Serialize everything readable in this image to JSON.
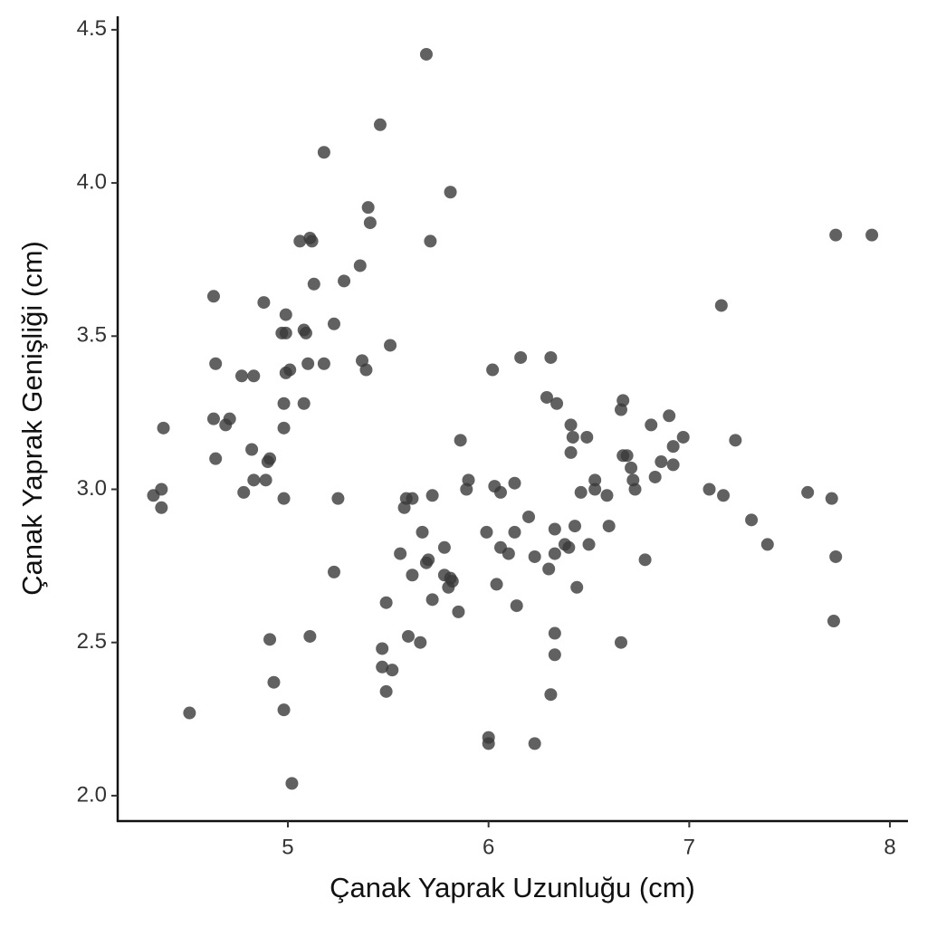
{
  "chart_data": {
    "type": "scatter",
    "x_label": "Çanak Yaprak Uzunluğu (cm)",
    "y_label": "Çanak Yaprak Genişliği (cm)",
    "color": "#3a3a3a",
    "xlim": [
      4.152,
      8.09
    ],
    "ylim": [
      1.917,
      4.544
    ],
    "xticks": [
      5,
      6,
      7,
      8
    ],
    "yticks": [
      {
        "value": 2,
        "label": "2.0"
      },
      2.5,
      {
        "value": 3,
        "label": "3.0"
      },
      3.5,
      {
        "value": 4,
        "label": "4.0"
      },
      4.5
    ],
    "x": [
      5.69,
      5.46,
      5.18,
      5.81,
      5.4,
      5.41,
      7.73,
      7.91,
      5.06,
      5.11,
      5.12,
      5.71,
      5.36,
      5.13,
      5.28,
      4.63,
      4.88,
      7.16,
      4.99,
      5.23,
      5.08,
      4.97,
      4.99,
      5.09,
      5.51,
      4.64,
      5.37,
      5.18,
      5.1,
      5.01,
      5.39,
      6.02,
      6.16,
      6.31,
      4.77,
      4.83,
      4.99,
      6.29,
      6.34,
      6.67,
      6.66,
      4.98,
      5.08,
      4.71,
      4.63,
      4.69,
      4.38,
      4.98,
      6.41,
      6.81,
      6.9,
      6.42,
      6.49,
      5.86,
      6.97,
      7.23,
      6.92,
      4.82,
      6.41,
      6.67,
      6.69,
      4.64,
      4.91,
      4.9,
      6.86,
      6.92,
      6.71,
      6.83,
      4.89,
      4.83,
      5.9,
      6.53,
      6.72,
      6.13,
      6.03,
      4.37,
      4.33,
      4.78,
      5.89,
      6.46,
      6.53,
      6.73,
      7.1,
      7.17,
      7.59,
      6.06,
      5.72,
      4.98,
      5.25,
      5.59,
      5.62,
      6.59,
      7.71,
      4.37,
      5.58,
      6.2,
      7.31,
      5.67,
      5.99,
      6.13,
      6.33,
      6.43,
      6.6,
      7.39,
      6.38,
      6.4,
      6.5,
      6.06,
      5.78,
      5.56,
      6.1,
      6.23,
      6.33,
      5.7,
      5.69,
      6.78,
      7.73,
      6.3,
      5.23,
      5.62,
      5.78,
      5.81,
      5.82,
      5.8,
      6.04,
      6.44,
      5.85,
      5.72,
      5.49,
      6.14,
      7.72,
      6.33,
      5.11,
      5.6,
      4.91,
      5.66,
      6.66,
      5.47,
      6.33,
      5.47,
      5.52,
      4.93,
      5.49,
      6.31,
      4.51,
      4.98,
      6.0,
      6.0,
      6.23,
      5.02
    ],
    "y": [
      4.42,
      4.19,
      4.1,
      3.97,
      3.92,
      3.87,
      3.83,
      3.83,
      3.81,
      3.82,
      3.81,
      3.81,
      3.73,
      3.67,
      3.68,
      3.63,
      3.61,
      3.6,
      3.57,
      3.54,
      3.52,
      3.51,
      3.51,
      3.51,
      3.47,
      3.41,
      3.42,
      3.41,
      3.41,
      3.39,
      3.39,
      3.39,
      3.43,
      3.43,
      3.37,
      3.37,
      3.38,
      3.3,
      3.28,
      3.29,
      3.26,
      3.28,
      3.28,
      3.23,
      3.23,
      3.21,
      3.2,
      3.2,
      3.21,
      3.21,
      3.24,
      3.17,
      3.17,
      3.16,
      3.17,
      3.16,
      3.14,
      3.13,
      3.12,
      3.11,
      3.11,
      3.1,
      3.1,
      3.09,
      3.09,
      3.08,
      3.07,
      3.04,
      3.03,
      3.03,
      3.03,
      3.03,
      3.03,
      3.02,
      3.01,
      3.0,
      2.98,
      2.99,
      3.0,
      2.99,
      3.0,
      3.0,
      3.0,
      2.98,
      2.99,
      2.99,
      2.98,
      2.97,
      2.97,
      2.97,
      2.97,
      2.98,
      2.97,
      2.94,
      2.94,
      2.91,
      2.9,
      2.86,
      2.86,
      2.86,
      2.87,
      2.88,
      2.88,
      2.82,
      2.82,
      2.81,
      2.82,
      2.81,
      2.81,
      2.79,
      2.79,
      2.78,
      2.79,
      2.77,
      2.76,
      2.77,
      2.78,
      2.74,
      2.73,
      2.72,
      2.72,
      2.71,
      2.7,
      2.68,
      2.69,
      2.68,
      2.6,
      2.64,
      2.63,
      2.62,
      2.57,
      2.53,
      2.52,
      2.52,
      2.51,
      2.5,
      2.5,
      2.48,
      2.46,
      2.42,
      2.41,
      2.37,
      2.34,
      2.33,
      2.27,
      2.28,
      2.19,
      2.17,
      2.17,
      2.04
    ]
  }
}
